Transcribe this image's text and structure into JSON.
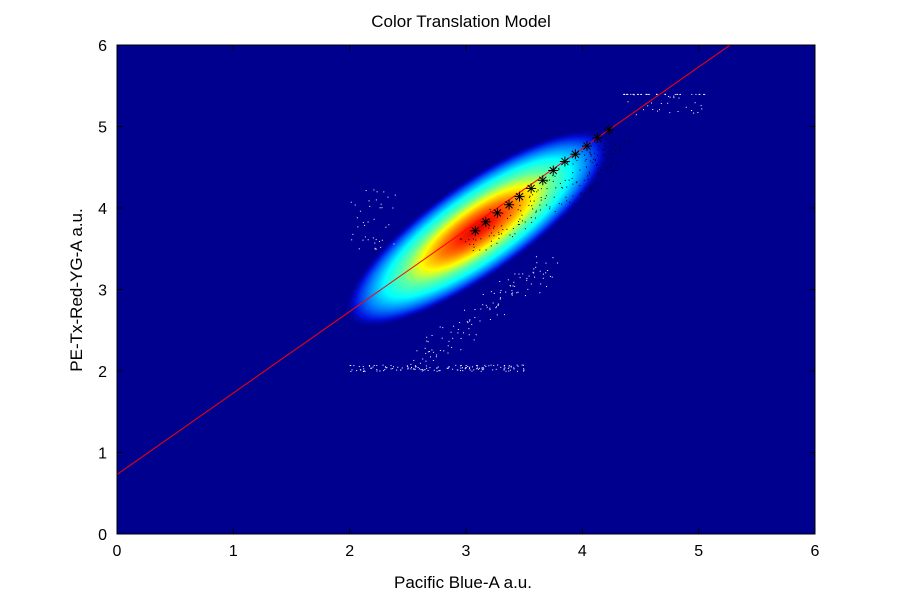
{
  "chart_data": {
    "type": "heatmap",
    "title": "Color Translation Model",
    "xlabel": "Pacific Blue-A  a.u.",
    "ylabel": "PE-Tx-Red-YG-A  a.u.",
    "xlim": [
      0,
      6
    ],
    "ylim": [
      0,
      6
    ],
    "x_ticks": [
      "0",
      "1",
      "2",
      "3",
      "4",
      "5",
      "6"
    ],
    "y_ticks": [
      "0",
      "1",
      "2",
      "3",
      "4",
      "5",
      "6"
    ],
    "grid": false,
    "colormap": "jet",
    "background_color": "#00008f",
    "density": {
      "center": [
        3.1,
        3.75
      ],
      "major_axis_slope": 1.0,
      "spread_major": 1.3,
      "spread_minor": 0.28
    },
    "fit_line": {
      "intercept": 0.73,
      "slope": 1.0,
      "color": "#ff0000"
    },
    "bin_means": {
      "marker": "*",
      "color": "#000000",
      "x": [
        3.08,
        3.17,
        3.27,
        3.37,
        3.46,
        3.56,
        3.66,
        3.75,
        3.85,
        3.94,
        4.04,
        4.13,
        4.23
      ],
      "y": [
        3.72,
        3.83,
        3.94,
        4.04,
        4.14,
        4.24,
        4.34,
        4.46,
        4.57,
        4.66,
        4.76,
        4.86,
        4.96
      ]
    }
  }
}
